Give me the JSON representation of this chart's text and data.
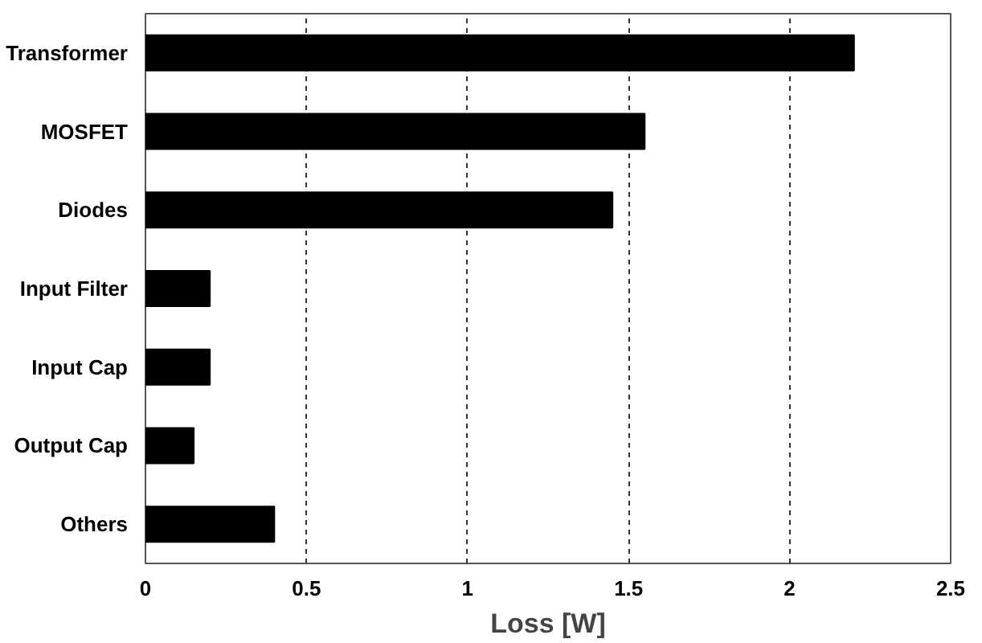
{
  "chart_data": {
    "type": "bar",
    "orientation": "horizontal",
    "xlabel": "Loss [W]",
    "categories": [
      "Transformer",
      "MOSFET",
      "Diodes",
      "Input Filter",
      "Input Cap",
      "Output Cap",
      "Others"
    ],
    "values": [
      2.2,
      1.55,
      1.45,
      0.2,
      0.2,
      0.15,
      0.4
    ],
    "color": "#000000",
    "xlim": [
      0,
      2.5
    ],
    "xticks": [
      0,
      0.5,
      1,
      1.5,
      2,
      2.5
    ],
    "grid": "x"
  }
}
